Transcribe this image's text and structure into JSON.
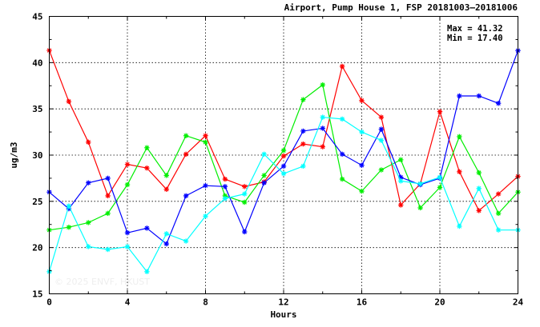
{
  "chart_data": {
    "type": "line",
    "title": "Airport, Pump House 1, FSP 20181003–20181006",
    "xlabel": "Hours",
    "ylabel": "ug/m3",
    "xlim": [
      0,
      24
    ],
    "ylim": [
      15,
      45
    ],
    "xticks": [
      0,
      4,
      8,
      12,
      16,
      20,
      24
    ],
    "yticks": [
      15,
      20,
      25,
      30,
      35,
      40,
      45
    ],
    "grid": true,
    "stats": {
      "max": "Max = 41.32",
      "min": "Min = 17.40"
    },
    "watermark": "© 2025 ENVF, HKUST",
    "x": [
      0,
      1,
      2,
      3,
      4,
      5,
      6,
      7,
      8,
      9,
      10,
      11,
      12,
      13,
      14,
      15,
      16,
      17,
      18,
      19,
      20,
      21,
      22,
      23,
      24
    ],
    "series": [
      {
        "color": "#ff0000",
        "values": [
          41.32,
          35.8,
          31.4,
          25.6,
          29.0,
          28.6,
          26.3,
          30.1,
          32.1,
          27.4,
          26.6,
          27.1,
          29.9,
          31.2,
          30.9,
          39.6,
          35.9,
          34.1,
          24.6,
          26.9,
          34.7,
          28.2,
          24.0,
          25.8,
          27.7
        ]
      },
      {
        "color": "#00ee00",
        "values": [
          21.9,
          22.2,
          22.7,
          23.7,
          26.8,
          30.8,
          27.8,
          32.1,
          31.4,
          25.6,
          24.9,
          27.8,
          30.5,
          36.0,
          37.6,
          27.4,
          26.1,
          28.4,
          29.5,
          24.3,
          26.5,
          32.0,
          28.1,
          23.7,
          26.0
        ]
      },
      {
        "color": "#0000ff",
        "values": [
          26.0,
          24.2,
          27.0,
          27.5,
          21.6,
          22.1,
          20.4,
          25.6,
          26.7,
          26.6,
          21.7,
          27.0,
          28.8,
          32.6,
          32.9,
          30.1,
          28.9,
          32.8,
          27.6,
          26.8,
          27.5,
          36.4,
          36.4,
          35.6,
          41.3
        ]
      },
      {
        "color": "#00ffff",
        "values": [
          17.4,
          24.5,
          20.1,
          19.8,
          20.1,
          17.4,
          21.5,
          20.7,
          23.4,
          25.3,
          25.8,
          30.1,
          28.0,
          28.8,
          34.1,
          33.9,
          32.5,
          31.6,
          27.2,
          26.9,
          27.6,
          22.3,
          26.4,
          21.9,
          21.9
        ]
      }
    ]
  }
}
